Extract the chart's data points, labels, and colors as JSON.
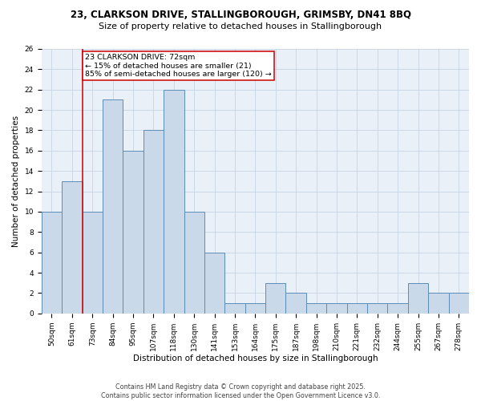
{
  "title": "23, CLARKSON DRIVE, STALLINGBOROUGH, GRIMSBY, DN41 8BQ",
  "subtitle": "Size of property relative to detached houses in Stallingborough",
  "xlabel": "Distribution of detached houses by size in Stallingborough",
  "ylabel": "Number of detached properties",
  "categories": [
    "50sqm",
    "61sqm",
    "73sqm",
    "84sqm",
    "95sqm",
    "107sqm",
    "118sqm",
    "130sqm",
    "141sqm",
    "153sqm",
    "164sqm",
    "175sqm",
    "187sqm",
    "198sqm",
    "210sqm",
    "221sqm",
    "232sqm",
    "244sqm",
    "255sqm",
    "267sqm",
    "278sqm"
  ],
  "values": [
    10,
    13,
    10,
    21,
    16,
    18,
    22,
    10,
    6,
    1,
    1,
    3,
    2,
    1,
    1,
    1,
    1,
    1,
    3,
    2,
    2
  ],
  "bar_color": "#c9d9ea",
  "bar_edge_color": "#5b8db8",
  "ref_line_index": 2,
  "ref_line_color": "#cc0000",
  "annotation_text": "23 CLARKSON DRIVE: 72sqm\n← 15% of detached houses are smaller (21)\n85% of semi-detached houses are larger (120) →",
  "annotation_box_color": "#ffffff",
  "annotation_box_edge": "#cc0000",
  "ylim": [
    0,
    26
  ],
  "yticks": [
    0,
    2,
    4,
    6,
    8,
    10,
    12,
    14,
    16,
    18,
    20,
    22,
    24,
    26
  ],
  "grid_color": "#c8d4e3",
  "background_color": "#eaf0f8",
  "footer": "Contains HM Land Registry data © Crown copyright and database right 2025.\nContains public sector information licensed under the Open Government Licence v3.0.",
  "title_fontsize": 8.5,
  "subtitle_fontsize": 8.0,
  "xlabel_fontsize": 7.5,
  "ylabel_fontsize": 7.5,
  "tick_fontsize": 6.5,
  "annotation_fontsize": 6.8,
  "footer_fontsize": 5.8
}
